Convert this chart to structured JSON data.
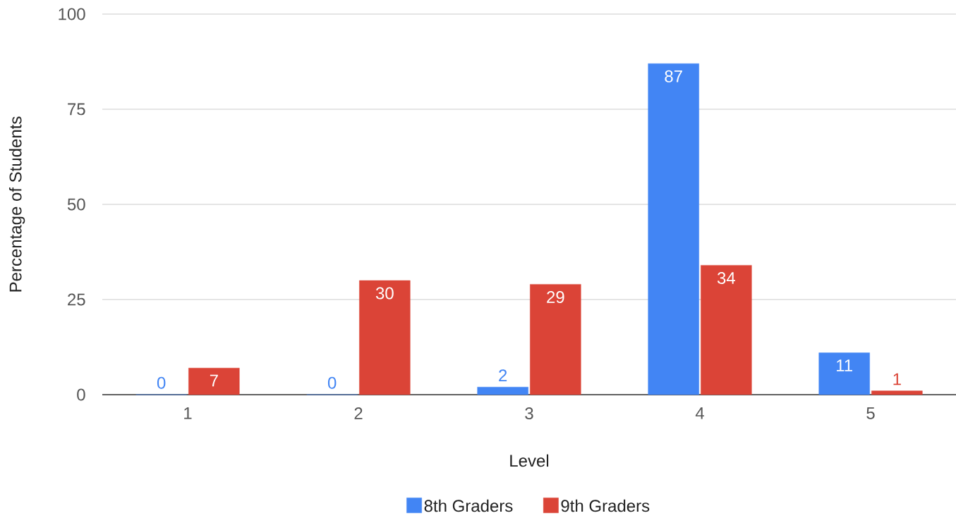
{
  "chart_data": {
    "type": "bar",
    "xlabel": "Level",
    "ylabel": "Percentage of Students",
    "categories": [
      "1",
      "2",
      "3",
      "4",
      "5"
    ],
    "series": [
      {
        "name": "8th Graders",
        "color": "#4285f4",
        "values": [
          0,
          0,
          2,
          87,
          11
        ]
      },
      {
        "name": "9th Graders",
        "color": "#db4437",
        "values": [
          7,
          30,
          29,
          34,
          1
        ]
      }
    ],
    "ylim": [
      0,
      100
    ],
    "yticks": [
      0,
      25,
      50,
      75,
      100
    ],
    "grid": "y",
    "legend": "bottom",
    "data_labels": true
  }
}
